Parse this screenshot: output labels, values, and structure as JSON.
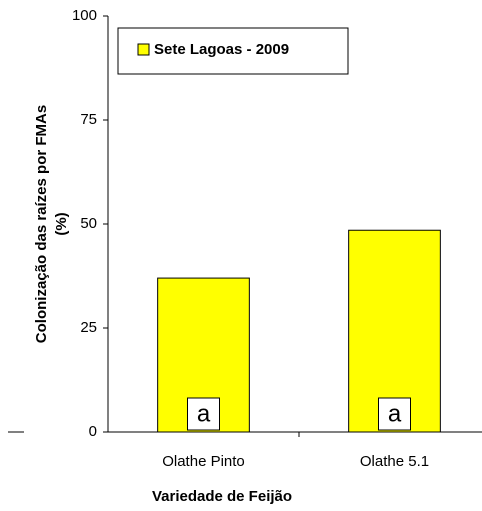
{
  "chart_data": {
    "type": "bar",
    "ylabel": [
      "Colonização das raízes por FMAs",
      "(%)"
    ],
    "xlabel": "Variedade de Feijão",
    "categories": [
      "Olathe Pinto",
      "Olathe 5.1"
    ],
    "series": [
      {
        "name": "Sete Lagoas - 2009",
        "color": "#ffff00",
        "values": [
          37,
          48.5
        ]
      }
    ],
    "annotations": [
      "a",
      "a"
    ],
    "ylim": [
      0,
      100
    ],
    "yticks": [
      0,
      25,
      50,
      75,
      100
    ],
    "legend": "upper left"
  }
}
